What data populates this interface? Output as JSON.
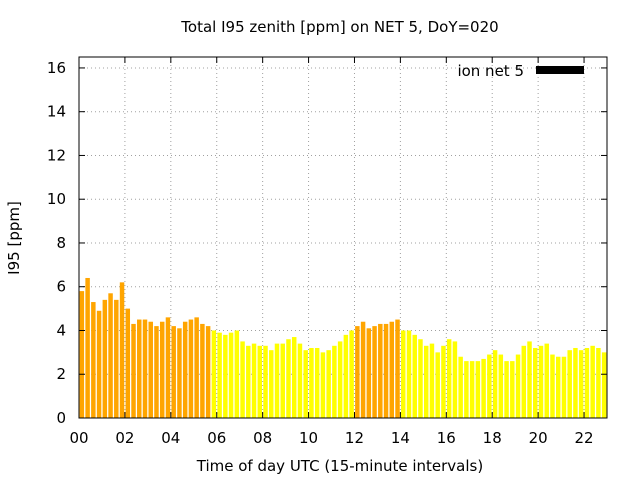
{
  "chart_data": {
    "type": "bar",
    "title": "Total I95 zenith [ppm] on NET 5, DoY=020",
    "xlabel": "Time of day UTC (15-minute intervals)",
    "ylabel": "I95 [ppm]",
    "xlim": [
      0,
      23
    ],
    "ylim": [
      0,
      16.5
    ],
    "x_ticks": [
      0,
      2,
      4,
      6,
      8,
      10,
      12,
      14,
      16,
      18,
      20,
      22
    ],
    "x_tick_labels": [
      "00",
      "02",
      "04",
      "06",
      "08",
      "10",
      "12",
      "14",
      "16",
      "18",
      "20",
      "22"
    ],
    "y_ticks": [
      0,
      2,
      4,
      6,
      8,
      10,
      12,
      14,
      16
    ],
    "y_tick_labels": [
      "0",
      "2",
      "4",
      "6",
      "8",
      "10",
      "12",
      "14",
      "16"
    ],
    "grid": true,
    "legend": {
      "label": "ion net 5",
      "color": "#000000",
      "position": "top-right"
    },
    "interval_hours": 0.25,
    "colors": {
      "high": "#ffa500",
      "low": "#ffff00",
      "mid": "#ffd700"
    },
    "values": [
      5.8,
      6.4,
      5.3,
      4.9,
      5.4,
      5.7,
      5.4,
      6.2,
      5.0,
      4.3,
      4.5,
      4.5,
      4.4,
      4.2,
      4.4,
      4.6,
      4.2,
      4.1,
      4.4,
      4.5,
      4.6,
      4.3,
      4.2,
      4.0,
      3.9,
      3.8,
      3.9,
      4.0,
      3.5,
      3.3,
      3.4,
      3.3,
      3.3,
      3.1,
      3.4,
      3.4,
      3.6,
      3.7,
      3.4,
      3.1,
      3.2,
      3.2,
      3.0,
      3.1,
      3.3,
      3.5,
      3.8,
      4.0,
      4.2,
      4.4,
      4.1,
      4.2,
      4.3,
      4.3,
      4.4,
      4.5,
      4.0,
      4.0,
      3.8,
      3.6,
      3.3,
      3.4,
      3.0,
      3.3,
      3.6,
      3.5,
      2.8,
      2.6,
      2.6,
      2.6,
      2.7,
      2.9,
      3.1,
      2.9,
      2.6,
      2.6,
      2.9,
      3.3,
      3.5,
      3.2,
      3.3,
      3.4,
      2.9,
      2.8,
      2.8,
      3.1,
      3.2,
      3.1,
      3.2,
      3.3,
      3.2,
      3.0
    ],
    "bar_colors": [
      "high",
      "high",
      "high",
      "high",
      "high",
      "high",
      "high",
      "high",
      "high",
      "high",
      "high",
      "high",
      "high",
      "high",
      "high",
      "high",
      "high",
      "high",
      "high",
      "high",
      "high",
      "high",
      "high",
      "low",
      "low",
      "low",
      "low",
      "low",
      "low",
      "low",
      "low",
      "low",
      "low",
      "low",
      "low",
      "low",
      "low",
      "low",
      "low",
      "low",
      "low",
      "low",
      "low",
      "low",
      "low",
      "low",
      "low",
      "low",
      "high",
      "high",
      "high",
      "high",
      "high",
      "high",
      "high",
      "high",
      "low",
      "low",
      "low",
      "low",
      "low",
      "low",
      "low",
      "low",
      "low",
      "low",
      "low",
      "low",
      "low",
      "low",
      "low",
      "low",
      "low",
      "low",
      "low",
      "low",
      "low",
      "low",
      "low",
      "low",
      "low",
      "low",
      "low",
      "low",
      "low",
      "low",
      "low",
      "low",
      "low",
      "low",
      "low",
      "low"
    ]
  }
}
